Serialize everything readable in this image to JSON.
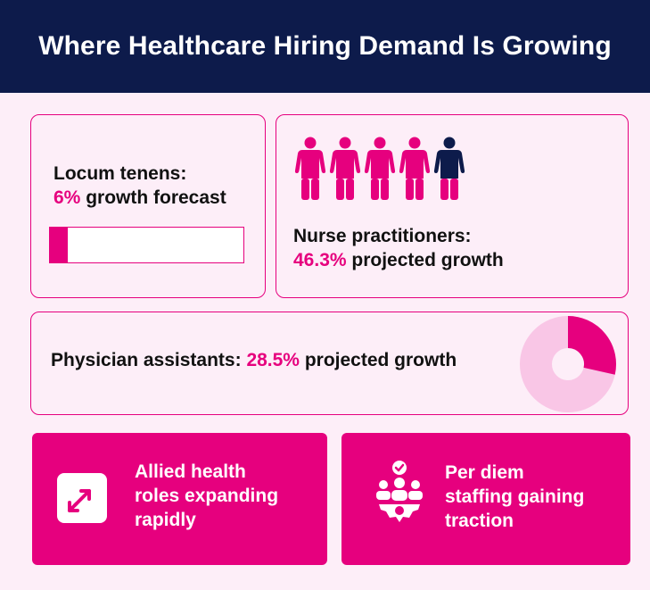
{
  "header": {
    "title": "Where Healthcare Hiring Demand Is Growing"
  },
  "colors": {
    "navy": "#0d1b4b",
    "magenta": "#e6007e",
    "light_pink": "#f9c6e6",
    "background": "#fdeef8"
  },
  "locum": {
    "label": "Locum tenens:",
    "value": "6%",
    "suffix": " growth forecast",
    "bar_fill_fraction": 0.09
  },
  "nurse_practitioners": {
    "label": "Nurse practitioners:",
    "value": "46.3%",
    "suffix": " projected growth",
    "people_count": 5,
    "highlighted_person_index": 4
  },
  "physician_assistants": {
    "label": "Physician assistants: ",
    "value": "28.5%",
    "suffix": " projected growth",
    "donut_fraction": 0.285
  },
  "tiles": {
    "allied": {
      "text": "Allied health\nroles expanding\n rapidly",
      "icon": "expand-arrows-icon"
    },
    "per_diem": {
      "text": "Per diem\nstaffing gaining\ntraction",
      "icon": "team-gear-check-icon"
    }
  }
}
